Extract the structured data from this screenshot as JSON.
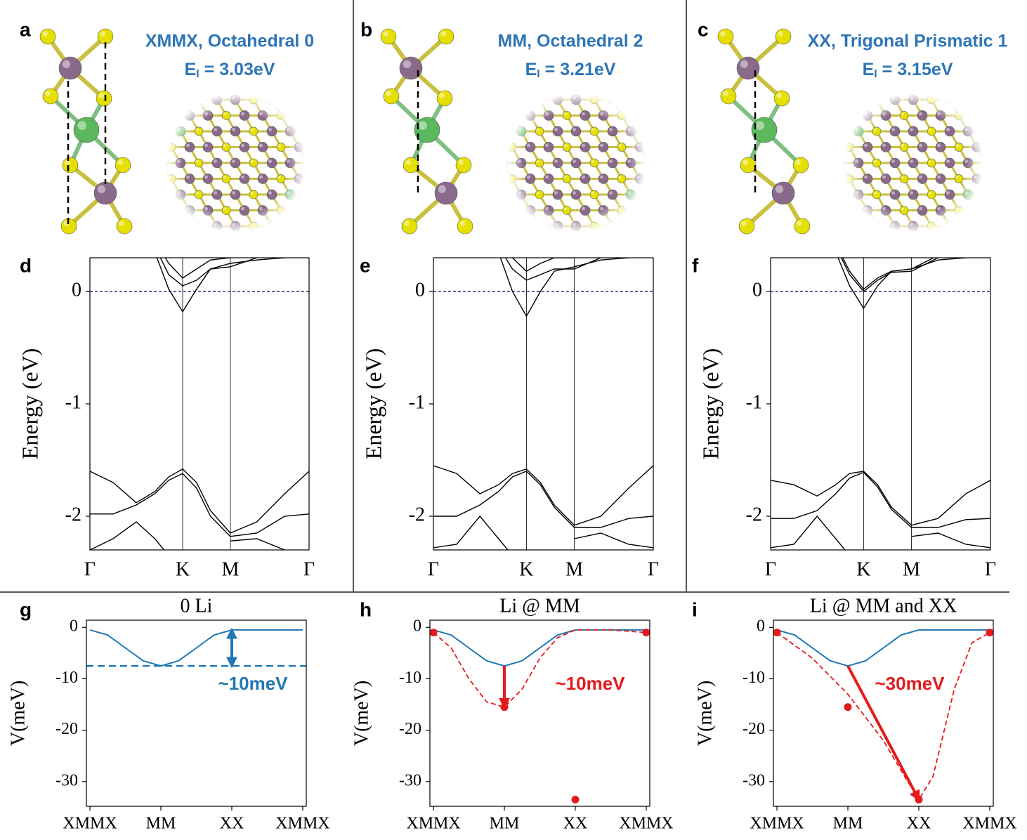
{
  "structures": [
    {
      "panel_label": "a",
      "title": "XMMX, Octahedral 0",
      "energy_symbol": "E",
      "energy_subscript": "I",
      "energy_text": " = 3.03eV"
    },
    {
      "panel_label": "b",
      "title": "MM, Octahedral 2",
      "energy_symbol": "E",
      "energy_subscript": "I",
      "energy_text": " = 3.21eV"
    },
    {
      "panel_label": "c",
      "title": "XX, Trigonal Prismatic 1",
      "energy_symbol": "E",
      "energy_subscript": "I",
      "energy_text": " = 3.15eV"
    }
  ],
  "chart_data": [
    {
      "type": "band",
      "panel_label": "d",
      "ylabel": "Energy (eV)",
      "xlim": [
        0,
        2.364
      ],
      "xticks": [
        {
          "value": 0,
          "label": "Γ"
        },
        {
          "value": 1,
          "label": "K"
        },
        {
          "value": 1.515,
          "label": "M"
        },
        {
          "value": 2.364,
          "label": "Γ"
        }
      ],
      "ylim": [
        -2.3,
        0.3
      ],
      "yticks": [
        0,
        -1,
        -2
      ],
      "fermi_level": 0,
      "fermi_color": "#00008b",
      "x": [
        0,
        0.25,
        0.5,
        0.7,
        0.85,
        1.0,
        1.15,
        1.3,
        1.515,
        1.8,
        2.1,
        2.364
      ],
      "series": [
        {
          "color": "#000000",
          "values": [
            null,
            null,
            null,
            0.35,
            0.02,
            -0.18,
            0.02,
            0.2,
            0.25,
            0.28,
            0.3,
            0.32
          ]
        },
        {
          "color": "#000000",
          "values": [
            null,
            null,
            null,
            0.4,
            0.15,
            0.05,
            0.1,
            0.2,
            0.22,
            0.3,
            0.4,
            null
          ]
        },
        {
          "color": "#000000",
          "values": [
            null,
            null,
            null,
            0.45,
            0.25,
            0.12,
            0.2,
            0.28,
            0.3,
            0.4,
            null,
            null
          ]
        },
        {
          "color": "#000000",
          "values": [
            -1.6,
            -1.7,
            -1.88,
            -1.78,
            -1.65,
            -1.58,
            -1.7,
            -1.95,
            -2.15,
            -2.05,
            -1.8,
            -1.6
          ]
        },
        {
          "color": "#000000",
          "values": [
            -1.98,
            -1.98,
            -1.9,
            -1.8,
            -1.68,
            -1.62,
            -1.75,
            -2.0,
            -2.18,
            -2.15,
            -2.0,
            -1.98
          ]
        },
        {
          "color": "#000000",
          "values": [
            -2.3,
            -2.2,
            -2.05,
            -2.2,
            -2.35,
            null,
            null,
            null,
            -2.22,
            -2.2,
            -2.3,
            -2.35
          ]
        }
      ]
    },
    {
      "type": "band",
      "panel_label": "e",
      "ylabel": "Energy (eV)",
      "xlim": [
        0,
        2.364
      ],
      "xticks": [
        {
          "value": 0,
          "label": "Γ"
        },
        {
          "value": 1,
          "label": "K"
        },
        {
          "value": 1.515,
          "label": "M"
        },
        {
          "value": 2.364,
          "label": "Γ"
        }
      ],
      "ylim": [
        -2.3,
        0.3
      ],
      "yticks": [
        0,
        -1,
        -2
      ],
      "fermi_level": 0,
      "fermi_color": "#00008b",
      "x": [
        0,
        0.25,
        0.5,
        0.7,
        0.85,
        1.0,
        1.15,
        1.3,
        1.515,
        1.8,
        2.1,
        2.364
      ],
      "series": [
        {
          "color": "#000000",
          "values": [
            null,
            null,
            null,
            0.35,
            0.0,
            -0.22,
            0.0,
            0.18,
            0.22,
            0.28,
            0.3,
            0.32
          ]
        },
        {
          "color": "#000000",
          "values": [
            null,
            null,
            null,
            0.4,
            0.2,
            0.1,
            0.15,
            0.2,
            0.2,
            0.3,
            0.4,
            null
          ]
        },
        {
          "color": "#000000",
          "values": [
            null,
            null,
            null,
            0.45,
            0.3,
            0.18,
            0.25,
            0.3,
            0.3,
            0.4,
            null,
            null
          ]
        },
        {
          "color": "#000000",
          "values": [
            -1.55,
            -1.62,
            -1.8,
            -1.72,
            -1.62,
            -1.58,
            -1.7,
            -1.9,
            -2.08,
            -2.0,
            -1.75,
            -1.55
          ]
        },
        {
          "color": "#000000",
          "values": [
            -2.0,
            -2.0,
            -1.9,
            -1.78,
            -1.65,
            -1.6,
            -1.72,
            -1.92,
            -2.1,
            -2.1,
            -2.02,
            -2.0
          ]
        },
        {
          "color": "#000000",
          "values": [
            -2.28,
            -2.25,
            -2.0,
            -2.2,
            -2.35,
            null,
            null,
            null,
            -2.2,
            -2.15,
            -2.25,
            -2.28
          ]
        }
      ]
    },
    {
      "type": "band",
      "panel_label": "f",
      "ylabel": "Energy (eV)",
      "xlim": [
        0,
        2.364
      ],
      "xticks": [
        {
          "value": 0,
          "label": "Γ"
        },
        {
          "value": 1,
          "label": "K"
        },
        {
          "value": 1.515,
          "label": "M"
        },
        {
          "value": 2.364,
          "label": "Γ"
        }
      ],
      "ylim": [
        -2.3,
        0.3
      ],
      "yticks": [
        0,
        -1,
        -2
      ],
      "fermi_level": 0,
      "fermi_color": "#00008b",
      "x": [
        0,
        0.25,
        0.5,
        0.7,
        0.85,
        1.0,
        1.15,
        1.3,
        1.515,
        1.8,
        2.1,
        2.364
      ],
      "series": [
        {
          "color": "#000000",
          "values": [
            null,
            null,
            null,
            0.35,
            0.05,
            -0.15,
            0.05,
            0.18,
            0.2,
            0.28,
            0.3,
            0.32
          ]
        },
        {
          "color": "#000000",
          "values": [
            null,
            null,
            null,
            0.4,
            0.15,
            0.0,
            0.1,
            0.17,
            0.18,
            0.3,
            0.4,
            null
          ]
        },
        {
          "color": "#000000",
          "values": [
            null,
            null,
            null,
            0.42,
            0.18,
            0.02,
            0.12,
            0.18,
            0.2,
            0.32,
            0.42,
            null
          ]
        },
        {
          "color": "#000000",
          "values": [
            -1.68,
            -1.72,
            -1.82,
            -1.72,
            -1.62,
            -1.6,
            -1.72,
            -1.92,
            -2.08,
            -2.02,
            -1.8,
            -1.68
          ]
        },
        {
          "color": "#000000",
          "values": [
            -2.02,
            -2.02,
            -1.95,
            -1.8,
            -1.66,
            -1.61,
            -1.74,
            -1.94,
            -2.1,
            -2.1,
            -2.03,
            -2.02
          ]
        },
        {
          "color": "#000000",
          "values": [
            -2.28,
            -2.25,
            -2.0,
            -2.2,
            -2.35,
            null,
            null,
            null,
            -2.18,
            -2.15,
            -2.25,
            -2.28
          ]
        }
      ]
    },
    {
      "type": "potential",
      "panel_label": "g",
      "title": "0 Li",
      "ylabel": "V(meV)",
      "xlim": [
        -0.05,
        3.05
      ],
      "xticks": [
        {
          "value": 0,
          "label": "XMMX"
        },
        {
          "value": 1,
          "label": "MM"
        },
        {
          "value": 2,
          "label": "XX"
        },
        {
          "value": 3,
          "label": "XMMX"
        }
      ],
      "ylim": [
        -34.8,
        1.4
      ],
      "yticks": [
        0,
        -10,
        -20,
        -30
      ],
      "series": [
        {
          "style": "line",
          "color": "#1f77b4",
          "x": [
            0,
            0.25,
            0.5,
            0.75,
            1,
            1.25,
            1.5,
            1.75,
            2,
            2.5,
            3
          ],
          "values": [
            -0.5,
            -1.5,
            -4,
            -6.5,
            -7.5,
            -6.5,
            -4,
            -1.5,
            -0.5,
            -0.5,
            -0.5
          ]
        }
      ],
      "reference_line": {
        "value": -7.5,
        "color": "#1f77b4"
      },
      "arrow": {
        "x": [
          2,
          2
        ],
        "y": [
          -0.5,
          -7.5
        ],
        "color": "#1f77b4",
        "double": true
      },
      "annotation": {
        "text": "~10meV",
        "color": "#1f77b4"
      }
    },
    {
      "type": "potential",
      "panel_label": "h",
      "title": "Li @ MM",
      "ylabel": "V(meV)",
      "xlim": [
        -0.05,
        3.05
      ],
      "xticks": [
        {
          "value": 0,
          "label": "XMMX"
        },
        {
          "value": 1,
          "label": "MM"
        },
        {
          "value": 2,
          "label": "XX"
        },
        {
          "value": 3,
          "label": "XMMX"
        }
      ],
      "ylim": [
        -34.8,
        1.4
      ],
      "yticks": [
        0,
        -10,
        -20,
        -30
      ],
      "series": [
        {
          "style": "line",
          "color": "#1f77b4",
          "x": [
            0,
            0.25,
            0.5,
            0.75,
            1,
            1.25,
            1.5,
            1.75,
            2,
            2.5,
            3
          ],
          "values": [
            -0.5,
            -1.5,
            -4,
            -6.5,
            -7.5,
            -6.5,
            -4,
            -1.5,
            -0.5,
            -0.5,
            -0.5
          ]
        },
        {
          "style": "dashed",
          "color": "#e41a1c",
          "x": [
            0,
            0.25,
            0.5,
            0.75,
            1,
            1.25,
            1.5,
            1.75,
            2,
            2.5,
            3
          ],
          "values": [
            -1,
            -4,
            -10,
            -14.5,
            -15.5,
            -12,
            -6,
            -2,
            -0.5,
            -0.5,
            -1
          ]
        },
        {
          "style": "scatter",
          "color": "#e41a1c",
          "x": [
            0,
            1,
            2,
            3
          ],
          "values": [
            -1,
            -15.5,
            -33.5,
            -1
          ]
        }
      ],
      "arrow": {
        "x": [
          1,
          1
        ],
        "y": [
          -7.5,
          -15.5
        ],
        "color": "#e41a1c",
        "double": false
      },
      "annotation": {
        "text": "~10meV",
        "color": "#e41a1c"
      }
    },
    {
      "type": "potential",
      "panel_label": "i",
      "title": "Li @ MM and XX",
      "ylabel": "V(meV)",
      "xlim": [
        -0.05,
        3.05
      ],
      "xticks": [
        {
          "value": 0,
          "label": "XMMX"
        },
        {
          "value": 1,
          "label": "MM"
        },
        {
          "value": 2,
          "label": "XX"
        },
        {
          "value": 3,
          "label": "XMMX"
        }
      ],
      "ylim": [
        -34.8,
        1.4
      ],
      "yticks": [
        0,
        -10,
        -20,
        -30
      ],
      "series": [
        {
          "style": "line",
          "color": "#1f77b4",
          "x": [
            0,
            0.25,
            0.5,
            0.75,
            1,
            1.25,
            1.5,
            1.75,
            2,
            2.5,
            3
          ],
          "values": [
            -0.5,
            -1.5,
            -4,
            -6.5,
            -7.5,
            -6.5,
            -4,
            -1.5,
            -0.5,
            -0.5,
            -0.5
          ]
        },
        {
          "style": "dashed",
          "color": "#e41a1c",
          "x": [
            0,
            0.5,
            1,
            1.5,
            1.8,
            2,
            2.2,
            2.5,
            2.75,
            3
          ],
          "values": [
            -1,
            -6,
            -13,
            -22,
            -29,
            -33.5,
            -29,
            -12,
            -3,
            -1
          ]
        },
        {
          "style": "scatter",
          "color": "#e41a1c",
          "x": [
            0,
            1,
            2,
            3
          ],
          "values": [
            -1,
            -15.5,
            -33.5,
            -1
          ]
        }
      ],
      "arrow": {
        "x": [
          1,
          2
        ],
        "y": [
          -7.5,
          -33.5
        ],
        "color": "#e41a1c",
        "double": false
      },
      "annotation": {
        "text": "~30meV",
        "color": "#e41a1c"
      }
    }
  ]
}
